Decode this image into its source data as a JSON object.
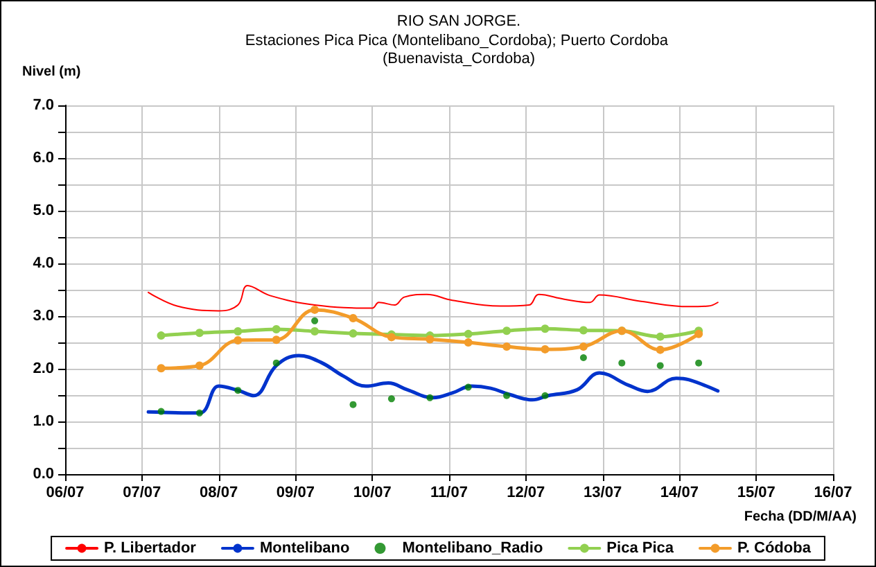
{
  "chart_data": {
    "type": "line",
    "title": "RIO SAN JORGE.",
    "subtitle": "Estaciones Pica Pica (Montelibano_Cordoba); Puerto Cordoba (Buenavista_Cordoba)",
    "xlabel": "Fecha (DD/M/AA)",
    "ylabel": "Nivel (m)",
    "xlim": [
      "--07-06",
      "--07-16"
    ],
    "xticks": [
      {
        "value": "--07-06",
        "label": "06/07"
      },
      {
        "value": "--07-07",
        "label": "07/07"
      },
      {
        "value": "--07-08",
        "label": "08/07"
      },
      {
        "value": "--07-09",
        "label": "09/07"
      },
      {
        "value": "--07-10",
        "label": "10/07"
      },
      {
        "value": "--07-11",
        "label": "11/07"
      },
      {
        "value": "--07-12",
        "label": "12/07"
      },
      {
        "value": "--07-13",
        "label": "13/07"
      },
      {
        "value": "--07-14",
        "label": "14/07"
      },
      {
        "value": "--07-15",
        "label": "15/07"
      },
      {
        "value": "--07-16",
        "label": "16/07"
      }
    ],
    "ylim": [
      0,
      7
    ],
    "yticks": [
      {
        "value": 0,
        "label": "0.0"
      },
      {
        "value": 0.5,
        "label": null
      },
      {
        "value": 1,
        "label": "1.0"
      },
      {
        "value": 1.5,
        "label": null
      },
      {
        "value": 2,
        "label": "2.0"
      },
      {
        "value": 2.5,
        "label": null
      },
      {
        "value": 3,
        "label": "3.0"
      },
      {
        "value": 3.5,
        "label": null
      },
      {
        "value": 4,
        "label": "4.0"
      },
      {
        "value": 4.5,
        "label": null
      },
      {
        "value": 5,
        "label": "5.0"
      },
      {
        "value": 5.5,
        "label": null
      },
      {
        "value": 6,
        "label": "6.0"
      },
      {
        "value": 6.5,
        "label": null
      },
      {
        "value": 7,
        "label": "7.0"
      }
    ],
    "grid": true,
    "legend": "bottom",
    "series": [
      {
        "name": "P. Libertador",
        "marker": "none",
        "color": "#ff0000",
        "x": [
          "--07-07T02:00",
          "--07-07T11:00",
          "--07-08T00:00",
          "--07-08T06:00",
          "--07-08T09:00",
          "--07-08T16:00",
          "--07-09T06:00",
          "--07-10T00:00",
          "--07-10T02:00",
          "--07-10T07:00",
          "--07-10T10:00",
          "--07-10T17:00",
          "--07-11T01:00",
          "--07-11T16:00",
          "--07-12T01:00",
          "--07-12T04:00",
          "--07-12T12:00",
          "--07-12T20:00",
          "--07-12T23:00",
          "--07-13T12:00",
          "--07-14T03:00",
          "--07-14T09:00",
          "--07-14T12:00"
        ],
        "values": [
          3.45,
          3.19,
          3.1,
          3.21,
          3.58,
          3.39,
          3.21,
          3.15,
          3.26,
          3.21,
          3.36,
          3.41,
          3.3,
          3.19,
          3.21,
          3.41,
          3.32,
          3.26,
          3.4,
          3.28,
          3.18,
          3.19,
          3.26
        ]
      },
      {
        "name": "Montelibano",
        "marker": "none",
        "color": "#0033cc",
        "x": [
          "--07-07T02:00",
          "--07-07T18:00",
          "--07-08T00:00",
          "--07-08T06:00",
          "--07-08T11:00",
          "--07-08T18:00",
          "--07-09T01:00",
          "--07-09T08:00",
          "--07-09T15:00",
          "--07-09T22:00",
          "--07-10T05:00",
          "--07-10T11:00",
          "--07-10T19:00",
          "--07-11T01:00",
          "--07-11T07:00",
          "--07-11T13:00",
          "--07-11T19:00",
          "--07-12T02:00",
          "--07-12T07:00",
          "--07-12T16:00",
          "--07-12T23:00",
          "--07-13T08:00",
          "--07-13T14:00",
          "--07-13T23:00",
          "--07-14T03:00",
          "--07-14T12:00"
        ],
        "values": [
          1.18,
          1.16,
          1.67,
          1.59,
          1.49,
          2.06,
          2.25,
          2.12,
          1.86,
          1.67,
          1.73,
          1.6,
          1.45,
          1.54,
          1.67,
          1.63,
          1.51,
          1.41,
          1.49,
          1.6,
          1.92,
          1.69,
          1.57,
          1.82,
          1.79,
          1.58
        ]
      },
      {
        "name": "Montelibano_Radio",
        "type": "scatter",
        "marker": "circle",
        "color": "#008000",
        "x": [
          "--07-07T06:00",
          "--07-07T18:00",
          "--07-08T06:00",
          "--07-08T18:00",
          "--07-09T06:00",
          "--07-09T18:00",
          "--07-10T06:00",
          "--07-10T18:00",
          "--07-11T06:00",
          "--07-11T18:00",
          "--07-12T06:00",
          "--07-12T18:00",
          "--07-13T06:00",
          "--07-13T18:00",
          "--07-14T06:00"
        ],
        "values": [
          1.19,
          1.16,
          1.59,
          2.11,
          2.91,
          1.32,
          1.43,
          1.45,
          1.65,
          1.49,
          1.49,
          2.21,
          2.11,
          2.06,
          2.11
        ]
      },
      {
        "name": "Pica Pica",
        "marker": "circle",
        "color": "#92d050",
        "x": [
          "--07-07T06:00",
          "--07-07T18:00",
          "--07-08T06:00",
          "--07-08T18:00",
          "--07-09T06:00",
          "--07-09T18:00",
          "--07-10T06:00",
          "--07-10T18:00",
          "--07-11T06:00",
          "--07-11T18:00",
          "--07-12T06:00",
          "--07-12T18:00",
          "--07-13T06:00",
          "--07-13T18:00",
          "--07-14T06:00"
        ],
        "values": [
          2.63,
          2.68,
          2.71,
          2.75,
          2.71,
          2.67,
          2.65,
          2.63,
          2.66,
          2.72,
          2.76,
          2.73,
          2.72,
          2.61,
          2.72
        ]
      },
      {
        "name": "P. Códoba",
        "marker": "circle",
        "color": "#f39c2a",
        "x": [
          "--07-07T06:00",
          "--07-07T18:00",
          "--07-08T06:00",
          "--07-08T18:00",
          "--07-09T06:00",
          "--07-09T18:00",
          "--07-10T06:00",
          "--07-10T18:00",
          "--07-11T06:00",
          "--07-11T18:00",
          "--07-12T06:00",
          "--07-12T18:00",
          "--07-13T06:00",
          "--07-13T18:00",
          "--07-14T06:00"
        ],
        "values": [
          2.01,
          2.06,
          2.54,
          2.55,
          3.12,
          2.96,
          2.6,
          2.56,
          2.5,
          2.42,
          2.37,
          2.42,
          2.72,
          2.36,
          2.66
        ]
      }
    ]
  }
}
